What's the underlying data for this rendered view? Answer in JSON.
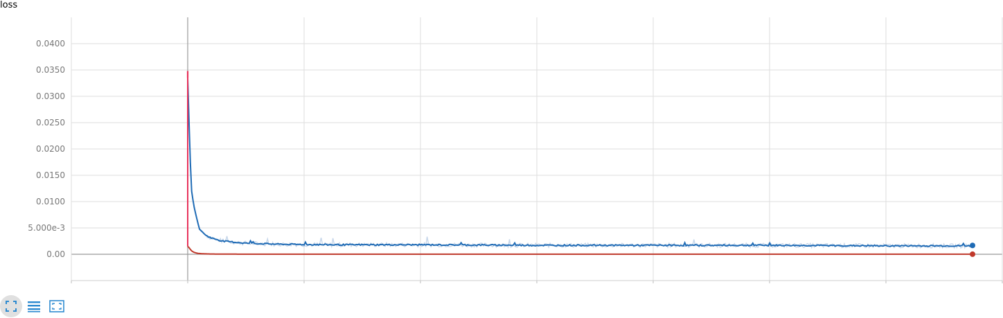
{
  "chart_data": {
    "type": "line",
    "title": "loss",
    "xlabel": "",
    "ylabel": "",
    "ylim": [
      -0.005,
      0.045
    ],
    "y_ticks": [
      0.0,
      0.005,
      0.01,
      0.015,
      0.02,
      0.025,
      0.03,
      0.035,
      0.04
    ],
    "y_tick_labels": [
      "0.00",
      "5.000e-3",
      "0.0100",
      "0.0150",
      "0.0200",
      "0.0250",
      "0.0300",
      "0.0350",
      "0.0400"
    ],
    "x_tick_count": 9,
    "grid": true,
    "series": [
      {
        "color": "#1f6bb5",
        "shade_color": "#c6d6ea",
        "x": [
          0,
          0.01,
          0.02,
          0.03,
          0.05,
          0.07,
          0.1,
          0.15,
          0.2,
          0.3,
          0.5,
          0.8,
          1.2,
          1.6,
          2,
          3,
          4,
          5,
          6,
          6.73
        ],
        "y": [
          0.0335,
          0.026,
          0.019,
          0.0125,
          0.0095,
          0.0075,
          0.0048,
          0.0037,
          0.0031,
          0.0025,
          0.0021,
          0.0019,
          0.0018,
          0.0018,
          0.0018,
          0.0017,
          0.0017,
          0.0017,
          0.0016,
          0.0016
        ]
      },
      {
        "color": "#c0392b",
        "spike_color": "#e8325a",
        "x": [
          0,
          0.01,
          0.02,
          0.03,
          0.05,
          0.08,
          0.12,
          0.2,
          0.4,
          1,
          2,
          3,
          4,
          5,
          6,
          6.73
        ],
        "y": [
          0.0015,
          0.0013,
          0.001,
          0.0007,
          0.0004,
          0.0002,
          0.0001,
          5e-05,
          2e-05,
          1e-05,
          1e-05,
          1e-05,
          1e-05,
          1e-05,
          1e-05,
          1e-05
        ]
      }
    ]
  },
  "toolbar": {
    "icons": [
      "fit-domain-icon",
      "toggle-log-icon",
      "expand-chart-icon"
    ]
  }
}
